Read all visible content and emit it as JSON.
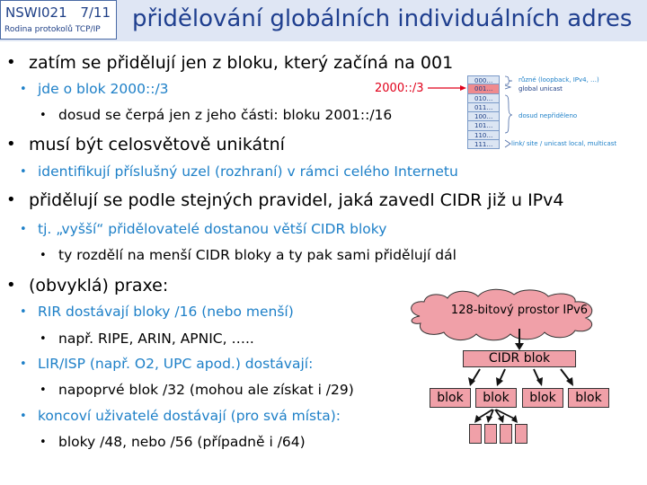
{
  "header": {
    "course_code": "NSWI021",
    "slide_number": "7/11",
    "course_subtitle": "Rodina protokolů TCP/IP",
    "title": "přidělování globálních individuálních adres"
  },
  "bullets": [
    "zatím se přidělují jen z bloku, který začíná na 001",
    "jde o blok 2000::/3",
    "dosud se čerpá jen z jeho části: bloku 2001::/16",
    "musí být celosvětově unikátní",
    "identifikují příslušný uzel (rozhraní) v rámci celého Internetu",
    "přidělují se podle stejných pravidel, jaká zavedl CIDR již u IPv4",
    "tj. „vyšší“ přidělovatelé dostanou větší CIDR bloky",
    "ty rozdělí na menší CIDR bloky a ty pak sami přidělují dál",
    "(obvyklá) praxe:",
    "RIR dostávají bloky /16 (nebo menší)",
    "např. RIPE, ARIN, APNIC, …..",
    "LIR/ISP (např. O2, UPC apod.) dostávají:",
    "napoprvé blok /32  (mohou ale získat i /29)",
    "koncoví uživatelé dostávají (pro svá místa):",
    "bloky /48, nebo /56 (případně i /64)"
  ],
  "address_table": {
    "label": "2000::/3",
    "rows": [
      "000…",
      "001…",
      "010…",
      "011…",
      "100…",
      "101…",
      "110…",
      "111…"
    ],
    "highlight_row": 1,
    "annotations": {
      "reserved": "různé (loopback, IPv4, …)",
      "global": "global unicast",
      "unallocated": "dosud nepřiděleno",
      "local": "link/ site / unicast local, multicast"
    }
  },
  "hierarchy": {
    "cloud": "128-bitový prostor IPv6",
    "cidr_block": "CIDR blok",
    "blocks": [
      "blok",
      "blok",
      "blok",
      "blok"
    ],
    "small_block_count": 4
  },
  "colors": {
    "header_bg": "#dfe6f4",
    "title": "#1f3f8f",
    "level2_text": "#1e80c8",
    "highlight": "#ef8a8e",
    "cloud_fill": "#f0a0a8"
  }
}
